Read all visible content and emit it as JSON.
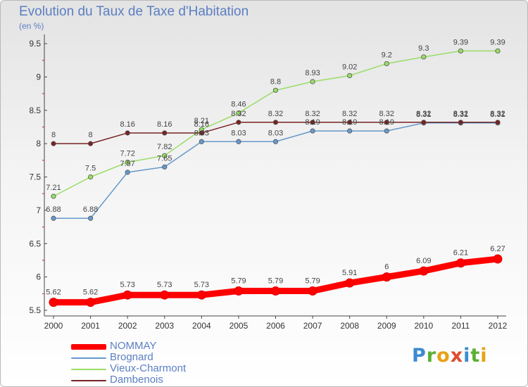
{
  "chart_data": {
    "type": "line",
    "title": "Evolution du Taux de Taxe d'Habitation",
    "subtitle": "(en %)",
    "xlabel": "",
    "ylabel": "",
    "x": [
      "2000",
      "2001",
      "2002",
      "2003",
      "2004",
      "2005",
      "2006",
      "2007",
      "2008",
      "2009",
      "2010",
      "2011",
      "2012"
    ],
    "ylim": [
      5.5,
      9.5
    ],
    "yticks": [
      "5.5",
      "6",
      "6.5",
      "7",
      "7.5",
      "8",
      "8.5",
      "9",
      "9.5"
    ],
    "grid": false,
    "legend_position": "bottom-left",
    "series": [
      {
        "name": "NOMMAY",
        "color": "#ff0000",
        "values": [
          5.62,
          5.62,
          5.73,
          5.73,
          5.73,
          5.79,
          5.79,
          5.79,
          5.91,
          6,
          6.09,
          6.21,
          6.27
        ],
        "labels": [
          "5.62",
          "5.62",
          "5.73",
          "5.73",
          "5.73",
          "5.79",
          "5.79",
          "5.79",
          "5.91",
          "6",
          "6.09",
          "6.21",
          "6.27"
        ]
      },
      {
        "name": "Brognard",
        "color": "#6699cc",
        "values": [
          6.88,
          6.88,
          7.57,
          7.65,
          8.03,
          8.03,
          8.03,
          8.19,
          8.19,
          8.19,
          8.31,
          8.31,
          8.31
        ],
        "labels": [
          "6.88",
          "6.88",
          "7.57",
          "7.65",
          "8.03",
          "8.03",
          "8.03",
          "8.19",
          "8.19",
          "8.19",
          "8.31",
          "8.31",
          "8.31"
        ]
      },
      {
        "name": "Vieux-Charmont",
        "color": "#99dd66",
        "values": [
          7.21,
          7.5,
          7.72,
          7.82,
          8.21,
          8.46,
          8.8,
          8.93,
          9.02,
          9.2,
          9.3,
          9.39,
          9.39
        ],
        "labels": [
          "7.21",
          "7.5",
          "7.72",
          "7.82",
          "8.21",
          "8.46",
          "8.8",
          "8.93",
          "9.02",
          "9.2",
          "9.3",
          "9.39",
          "9.39"
        ]
      },
      {
        "name": "Dambenois",
        "color": "#772222",
        "values": [
          8,
          8,
          8.16,
          8.16,
          8.16,
          8.32,
          8.32,
          8.32,
          8.32,
          8.32,
          8.32,
          8.32,
          8.32
        ],
        "labels": [
          "8",
          "8",
          "8.16",
          "8.16",
          "8.16",
          "8.32",
          "8.32",
          "8.32",
          "8.32",
          "8.32",
          "8.32",
          "8.32",
          "8.32"
        ]
      }
    ]
  },
  "logo": {
    "text": "Proxiti",
    "letters": [
      "P",
      "r",
      "o",
      "x",
      "i",
      "t",
      "i"
    ],
    "colors": [
      "#3b8bd1",
      "#5bb033",
      "#e7a117",
      "#e04a2f",
      "#3b8bd1",
      "#5bb033",
      "#e7a117"
    ]
  }
}
